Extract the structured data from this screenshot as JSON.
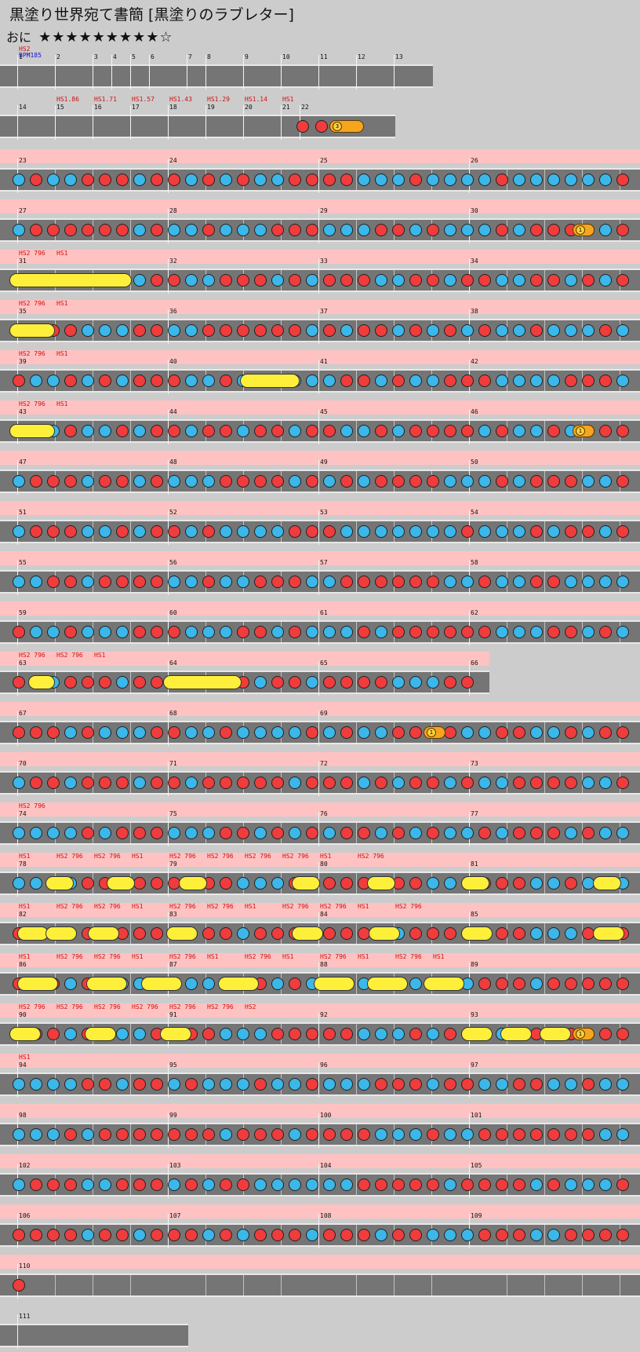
{
  "song": {
    "title": "黒塗り世界宛て書簡 [黒塗りのラブレター]",
    "difficulty": "おに",
    "stars": "★★★★★★★★★☆"
  },
  "bpm_label": "BPM185",
  "colors": {
    "don": "#f03c3c",
    "ka": "#3bb7ea",
    "drumroll": "#fef03a",
    "balloon": "#f7a51f",
    "band": "#ffc2c2"
  },
  "rows": [
    {
      "measures": [
        "1",
        "2",
        "3",
        "4",
        "5",
        "6",
        "7",
        "8",
        "9",
        "10",
        "11",
        "12",
        "13"
      ],
      "hs": [
        {
          "t": "HS2"
        }
      ],
      "notes": "",
      "band": false
    },
    {
      "measures": [
        "14",
        "15",
        "16",
        "17",
        "18",
        "19",
        "20",
        "21",
        "22"
      ],
      "hs": [
        {
          "t": "HS1.86"
        },
        {
          "t": "HS1.71"
        },
        {
          "t": "HS1.57"
        },
        {
          "t": "HS1.43"
        },
        {
          "t": "HS1.29"
        },
        {
          "t": "HS1.14"
        },
        {
          "t": "HS1"
        }
      ],
      "notes": "dd",
      "balloon": "3",
      "band": false
    },
    {
      "measures": [
        "23",
        "24",
        "25",
        "26"
      ],
      "band": true
    },
    {
      "measures": [
        "27",
        "28",
        "29",
        "30"
      ],
      "band": true,
      "balloon": "1"
    },
    {
      "measures": [
        "31",
        "32",
        "33",
        "34"
      ],
      "hs": [
        {
          "t": "HS2 796"
        },
        {
          "t": "HS1"
        }
      ],
      "band": true
    },
    {
      "measures": [
        "35",
        "36",
        "37",
        "38"
      ],
      "hs": [
        {
          "t": "HS2 796"
        },
        {
          "t": "HS1"
        }
      ],
      "band": true
    },
    {
      "measures": [
        "39",
        "40",
        "41",
        "42"
      ],
      "hs": [
        {
          "t": "HS2 796"
        },
        {
          "t": "HS1"
        }
      ],
      "band": true
    },
    {
      "measures": [
        "43",
        "44",
        "45",
        "46"
      ],
      "hs": [
        {
          "t": "HS2 796"
        },
        {
          "t": "HS1"
        }
      ],
      "band": true,
      "balloon": "1"
    },
    {
      "measures": [
        "47",
        "48",
        "49",
        "50"
      ],
      "band": true
    },
    {
      "measures": [
        "51",
        "52",
        "53",
        "54"
      ],
      "band": true
    },
    {
      "measures": [
        "55",
        "56",
        "57",
        "58"
      ],
      "band": true
    },
    {
      "measures": [
        "59",
        "60",
        "61",
        "62"
      ],
      "band": true
    },
    {
      "measures": [
        "63",
        "64",
        "65",
        "66"
      ],
      "hs": [
        {
          "t": "HS2 796"
        },
        {
          "t": "HS2 796"
        },
        {
          "t": "HS1"
        }
      ],
      "band": true
    },
    {
      "measures": [
        "67",
        "68",
        "69"
      ],
      "band": true,
      "balloon": "1"
    },
    {
      "measures": [
        "70",
        "71",
        "72",
        "73"
      ],
      "band": true
    },
    {
      "measures": [
        "74",
        "75",
        "76",
        "77"
      ],
      "hs": [
        {
          "t": "HS2 796"
        }
      ],
      "band": true
    },
    {
      "measures": [
        "78",
        "79",
        "80",
        "81"
      ],
      "hs": [
        {
          "t": "HS1"
        },
        {
          "t": "HS2 796"
        },
        {
          "t": "HS2 796"
        },
        {
          "t": "HS1"
        },
        {
          "t": "HS2 796"
        },
        {
          "t": "HS2 796"
        },
        {
          "t": "HS2 796"
        },
        {
          "t": "HS2 796"
        },
        {
          "t": "HS1"
        },
        {
          "t": "HS2 796"
        }
      ],
      "band": true
    },
    {
      "measures": [
        "82",
        "83",
        "84",
        "85"
      ],
      "hs": [
        {
          "t": "HS1"
        },
        {
          "t": "HS2 796"
        },
        {
          "t": "HS2 796"
        },
        {
          "t": "HS1"
        },
        {
          "t": "HS2 796"
        },
        {
          "t": "HS2 796"
        },
        {
          "t": "HS1"
        },
        {
          "t": "HS2 796"
        },
        {
          "t": "HS2 796"
        },
        {
          "t": "HS1"
        },
        {
          "t": "HS2 796"
        }
      ],
      "band": true
    },
    {
      "measures": [
        "86",
        "87",
        "88",
        "89"
      ],
      "hs": [
        {
          "t": "HS1"
        },
        {
          "t": "HS2 796"
        },
        {
          "t": "HS2 796"
        },
        {
          "t": "HS1"
        },
        {
          "t": "HS2 796"
        },
        {
          "t": "HS1"
        },
        {
          "t": "HS2 796"
        },
        {
          "t": "HS1"
        },
        {
          "t": "HS2 796"
        },
        {
          "t": "HS1"
        },
        {
          "t": "HS2 796"
        },
        {
          "t": "HS1"
        }
      ],
      "band": true
    },
    {
      "measures": [
        "90",
        "91",
        "92",
        "93"
      ],
      "hs": [
        {
          "t": "HS2 796"
        },
        {
          "t": "HS2 796"
        },
        {
          "t": "HS2 796"
        },
        {
          "t": "HS2 796"
        },
        {
          "t": "HS2 796"
        },
        {
          "t": "HS2 796"
        },
        {
          "t": "HS2"
        }
      ],
      "band": true,
      "balloon": "1"
    },
    {
      "measures": [
        "94",
        "95",
        "96",
        "97"
      ],
      "hs": [
        {
          "t": "HS1"
        }
      ],
      "band": true
    },
    {
      "measures": [
        "98",
        "99",
        "100",
        "101"
      ],
      "band": true
    },
    {
      "measures": [
        "102",
        "103",
        "104",
        "105"
      ],
      "band": true
    },
    {
      "measures": [
        "106",
        "107",
        "108",
        "109"
      ],
      "band": true
    },
    {
      "measures": [
        "110"
      ],
      "band": true
    },
    {
      "measures": [
        "111"
      ],
      "band": false
    }
  ]
}
